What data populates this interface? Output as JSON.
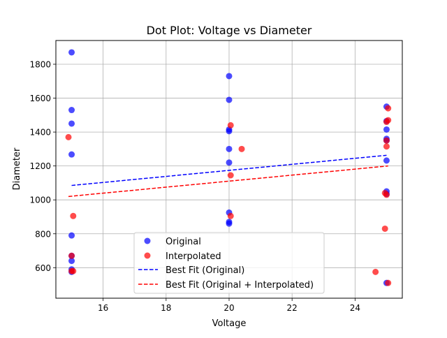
{
  "chart_data": {
    "type": "scatter",
    "title": "Dot Plot: Voltage vs Diameter",
    "xlabel": "Voltage",
    "ylabel": "Diameter",
    "xlim": [
      14.5,
      25.5
    ],
    "ylim": [
      420,
      1940
    ],
    "xticks": [
      16,
      18,
      20,
      22,
      24
    ],
    "yticks": [
      600,
      800,
      1000,
      1200,
      1400,
      1600,
      1800
    ],
    "grid": true,
    "legend_position": "lower-center",
    "series": [
      {
        "name": "Original",
        "kind": "scatter",
        "color": "#0000ff",
        "points": [
          [
            15,
            1870
          ],
          [
            15,
            1530
          ],
          [
            15,
            1450
          ],
          [
            15,
            1268
          ],
          [
            15,
            790
          ],
          [
            15,
            670
          ],
          [
            15,
            640
          ],
          [
            15,
            590
          ],
          [
            15,
            575
          ],
          [
            20,
            1730
          ],
          [
            20,
            1590
          ],
          [
            20,
            1415
          ],
          [
            20,
            1405
          ],
          [
            20,
            1300
          ],
          [
            20,
            1220
          ],
          [
            20,
            925
          ],
          [
            20,
            870
          ],
          [
            20,
            860
          ],
          [
            25,
            1550
          ],
          [
            25,
            1465
          ],
          [
            25,
            1415
          ],
          [
            25,
            1360
          ],
          [
            25,
            1350
          ],
          [
            25,
            1232
          ],
          [
            25,
            1050
          ],
          [
            25,
            1035
          ],
          [
            25,
            510
          ]
        ]
      },
      {
        "name": "Interpolated",
        "kind": "scatter",
        "color": "#ff0000",
        "points": [
          [
            14.9,
            1370
          ],
          [
            15.05,
            905
          ],
          [
            15,
            670
          ],
          [
            15,
            580
          ],
          [
            15.05,
            580
          ],
          [
            20.05,
            1440
          ],
          [
            20.05,
            1145
          ],
          [
            20.4,
            1300
          ],
          [
            20.05,
            905
          ],
          [
            25.05,
            1540
          ],
          [
            25.05,
            1470
          ],
          [
            25,
            1460
          ],
          [
            25,
            1350
          ],
          [
            25,
            1315
          ],
          [
            24.95,
            1040
          ],
          [
            25,
            1030
          ],
          [
            24.95,
            830
          ],
          [
            24.65,
            575
          ],
          [
            25.05,
            510
          ]
        ]
      },
      {
        "name": "Best Fit (Original)",
        "kind": "line",
        "color": "#0000ff",
        "points": [
          [
            15,
            1085
          ],
          [
            25,
            1263
          ]
        ]
      },
      {
        "name": "Best Fit (Original + Interpolated)",
        "kind": "line",
        "color": "#ff0000",
        "points": [
          [
            14.9,
            1020
          ],
          [
            25.05,
            1200
          ]
        ]
      }
    ]
  }
}
